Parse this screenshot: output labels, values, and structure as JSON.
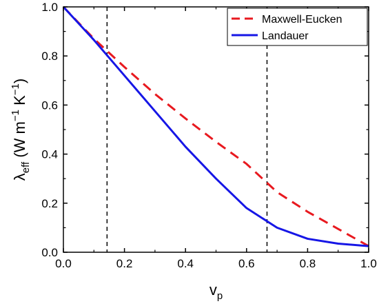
{
  "chart_data": {
    "type": "line",
    "title": "",
    "xlabel": {
      "main": "v",
      "sub": "p"
    },
    "ylabel": {
      "main": "λ",
      "sub": "eff",
      "units_a": " (W m",
      "sup1": "−1",
      "units_b": " K",
      "sup2": "−1",
      "units_c": ")"
    },
    "xlim": [
      0.0,
      1.0
    ],
    "ylim": [
      0.0,
      1.0
    ],
    "x_ticks": [
      "0.0",
      "0.2",
      "0.4",
      "0.6",
      "0.8",
      "1.0"
    ],
    "y_ticks": [
      "0.0",
      "0.2",
      "0.4",
      "0.6",
      "0.8",
      "1.0"
    ],
    "grid": false,
    "legend_position": "top-right",
    "series": [
      {
        "name": "Maxwell-Eucken",
        "color": "#e8191f",
        "style": "dashed",
        "x": [
          0.0,
          0.1,
          0.2,
          0.3,
          0.4,
          0.5,
          0.6,
          0.7,
          0.8,
          0.9,
          1.0
        ],
        "y": [
          1.0,
          0.87,
          0.755,
          0.645,
          0.545,
          0.45,
          0.36,
          0.245,
          0.165,
          0.095,
          0.025
        ]
      },
      {
        "name": "Landauer",
        "color": "#1616e6",
        "style": "solid",
        "x": [
          0.0,
          0.1,
          0.2,
          0.3,
          0.4,
          0.5,
          0.6,
          0.7,
          0.8,
          0.9,
          1.0
        ],
        "y": [
          1.0,
          0.865,
          0.72,
          0.575,
          0.43,
          0.3,
          0.18,
          0.1,
          0.055,
          0.035,
          0.025
        ]
      }
    ],
    "vertical_lines": [
      {
        "x": 0.143,
        "color": "#000000",
        "style": "dashed"
      },
      {
        "x": 0.667,
        "color": "#000000",
        "style": "dashed"
      }
    ]
  }
}
